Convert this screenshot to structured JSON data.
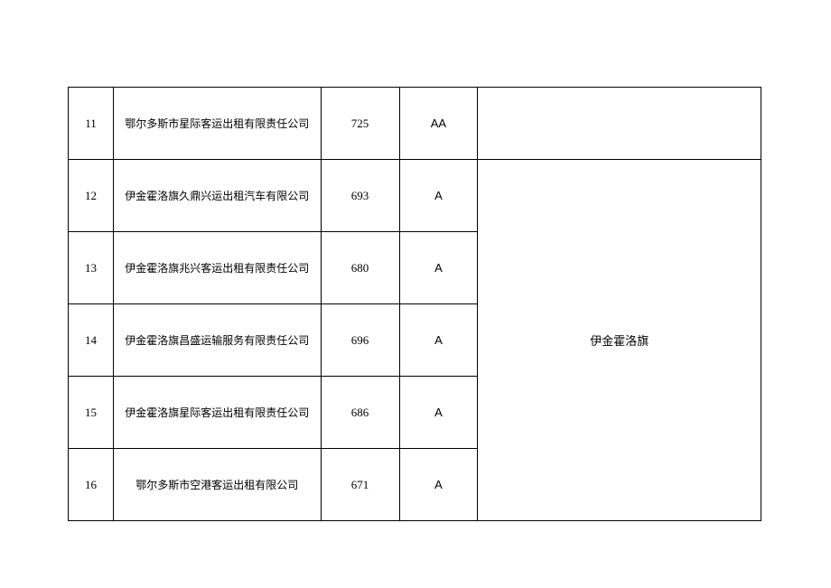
{
  "table": {
    "rows": [
      {
        "num": "11",
        "company": "鄂尔多斯市星际客运出租有限责任公司",
        "score": "725",
        "grade": "AA",
        "region": ""
      },
      {
        "num": "12",
        "company": "伊金霍洛旗久鼎兴运出租汽车有限公司",
        "score": "693",
        "grade": "A"
      },
      {
        "num": "13",
        "company": "伊金霍洛旗兆兴客运出租有限责任公司",
        "score": "680",
        "grade": "A"
      },
      {
        "num": "14",
        "company": "伊金霍洛旗昌盛运输服务有限责任公司",
        "score": "696",
        "grade": "A"
      },
      {
        "num": "15",
        "company": "伊金霍洛旗星际客运出租有限责任公司",
        "score": "686",
        "grade": "A"
      },
      {
        "num": "16",
        "company": "鄂尔多斯市空港客运出租有限公司",
        "score": "671",
        "grade": "A"
      }
    ],
    "merged_region": "伊金霍洛旗"
  }
}
